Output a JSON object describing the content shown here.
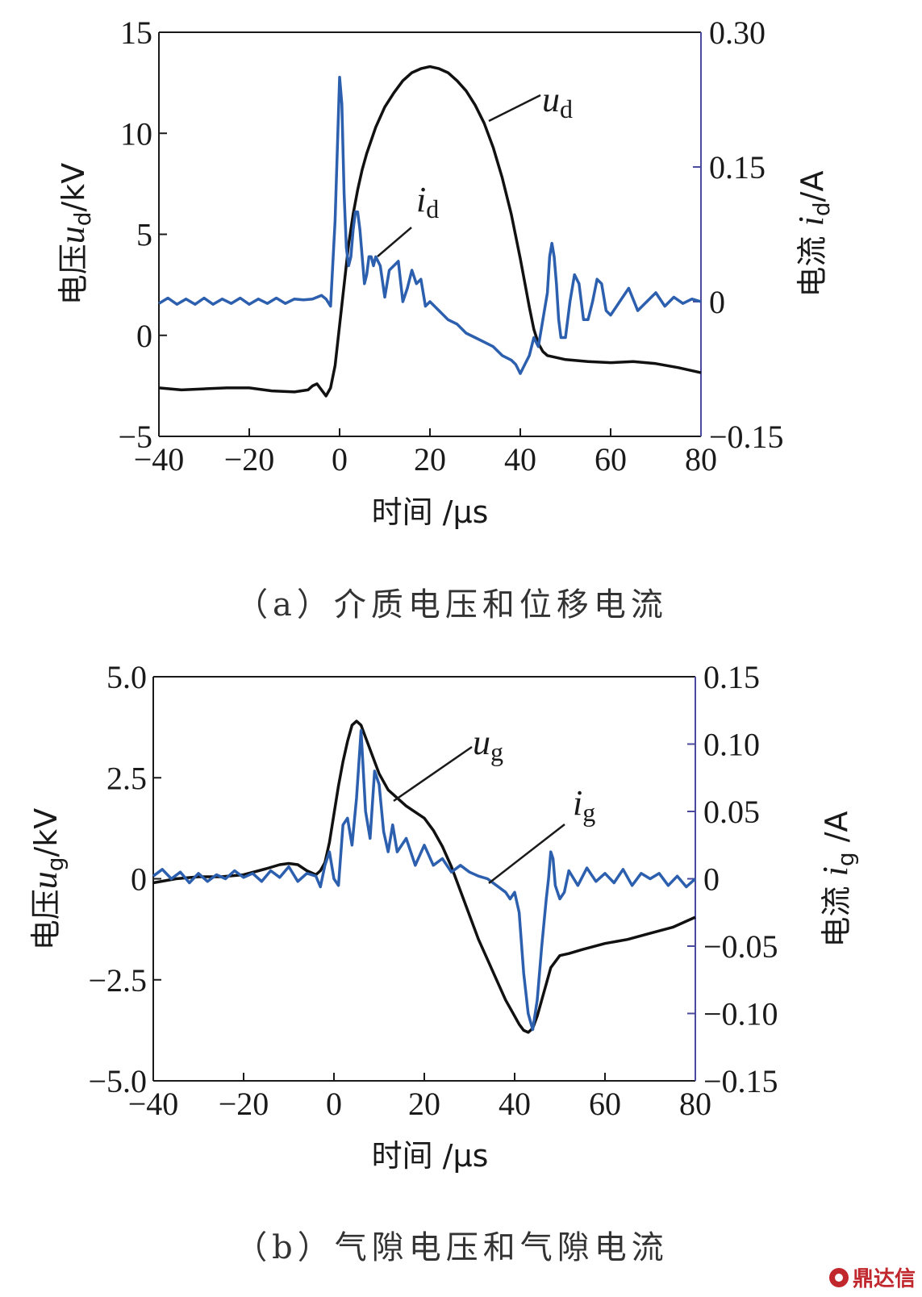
{
  "colors": {
    "voltage": "#111111",
    "current": "#2c5fad",
    "right_axis": "#4a4a9e"
  },
  "chart_data": [
    {
      "type": "line",
      "panel": "a",
      "caption": "（a）介质电压和位移电流",
      "xlabel": "时间 /μs",
      "ylabel_left": {
        "prefix": "电压",
        "var": "u",
        "sub": "d",
        "unit": "/kV"
      },
      "ylabel_right": {
        "prefix": "电流 ",
        "var": "i",
        "sub": "d",
        "unit": "/A"
      },
      "xlim": [
        -40,
        80
      ],
      "ylim_left": [
        -5,
        15
      ],
      "ylim_right": [
        -0.15,
        0.3
      ],
      "x_ticks": [
        "−40",
        "−20",
        "0",
        "20",
        "40",
        "60",
        "80"
      ],
      "y_left_ticks": [
        "−5",
        "0",
        "5",
        "10",
        "15"
      ],
      "y_right_ticks": [
        "−0.15",
        "0",
        "0.15",
        "0.30"
      ],
      "annotations": [
        {
          "var": "u",
          "sub": "d",
          "series": "u_d"
        },
        {
          "var": "i",
          "sub": "d",
          "series": "i_d"
        }
      ],
      "series": [
        {
          "name": "u_d",
          "axis": "left",
          "x": [
            -40,
            -35,
            -30,
            -25,
            -20,
            -15,
            -10,
            -7,
            -6,
            -5,
            -4,
            -3,
            -2,
            -1,
            0,
            1,
            2,
            3,
            4,
            5,
            6,
            8,
            10,
            12,
            14,
            16,
            18,
            20,
            22,
            24,
            26,
            28,
            30,
            32,
            34,
            36,
            38,
            40,
            41,
            42,
            43,
            44,
            45,
            46,
            48,
            50,
            55,
            60,
            65,
            70,
            75,
            80
          ],
          "y": [
            -2.6,
            -2.7,
            -2.65,
            -2.6,
            -2.6,
            -2.75,
            -2.8,
            -2.7,
            -2.5,
            -2.4,
            -2.7,
            -3.0,
            -2.6,
            -1.5,
            0.5,
            2.5,
            4.5,
            6.0,
            7.2,
            8.2,
            9.0,
            10.3,
            11.3,
            12.0,
            12.6,
            13.0,
            13.2,
            13.3,
            13.2,
            13.0,
            12.6,
            12.1,
            11.4,
            10.5,
            9.3,
            7.8,
            6.0,
            3.8,
            2.6,
            1.4,
            0.3,
            -0.4,
            -0.8,
            -1.0,
            -1.1,
            -1.2,
            -1.3,
            -1.35,
            -1.3,
            -1.4,
            -1.6,
            -1.85
          ]
        },
        {
          "name": "i_d",
          "axis": "right",
          "x": [
            -40,
            -38,
            -36,
            -34,
            -32,
            -30,
            -28,
            -26,
            -24,
            -22,
            -20,
            -18,
            -16,
            -14,
            -12,
            -10,
            -8,
            -6,
            -4,
            -3,
            -2,
            -1,
            0,
            0.5,
            1,
            1.5,
            2,
            2.5,
            3,
            3.5,
            4,
            4.5,
            5,
            5.5,
            6,
            6.5,
            7,
            7.5,
            8,
            9,
            10,
            11,
            12,
            13,
            14,
            15,
            16,
            17,
            18,
            19,
            20,
            22,
            24,
            26,
            28,
            30,
            32,
            34,
            36,
            38,
            39,
            40,
            41,
            42,
            43,
            44,
            45,
            46,
            46.5,
            47,
            47.5,
            48,
            48.5,
            49,
            50,
            51,
            52,
            53,
            54,
            55,
            56,
            57,
            58,
            59,
            60,
            62,
            64,
            66,
            68,
            70,
            72,
            74,
            76,
            78,
            80
          ],
          "y": [
            -0.002,
            0.004,
            -0.003,
            0.003,
            -0.003,
            0.004,
            -0.003,
            0.003,
            -0.002,
            0.004,
            -0.003,
            0.003,
            -0.002,
            0.004,
            -0.002,
            0.003,
            0.002,
            0.003,
            0.007,
            0.003,
            -0.005,
            0.09,
            0.25,
            0.22,
            0.12,
            0.06,
            0.04,
            0.05,
            0.08,
            0.1,
            0.1,
            0.08,
            0.05,
            0.02,
            0.03,
            0.05,
            0.05,
            0.04,
            0.05,
            0.04,
            0.005,
            0.035,
            0.04,
            0.045,
            0.0,
            0.015,
            0.035,
            0.02,
            0.025,
            -0.005,
            0.0,
            -0.01,
            -0.02,
            -0.025,
            -0.035,
            -0.04,
            -0.045,
            -0.05,
            -0.06,
            -0.065,
            -0.07,
            -0.08,
            -0.07,
            -0.06,
            -0.04,
            -0.05,
            -0.02,
            0.01,
            0.05,
            0.065,
            0.05,
            0.02,
            -0.02,
            -0.04,
            -0.04,
            0.0,
            0.03,
            0.02,
            -0.02,
            -0.02,
            0.0,
            0.025,
            0.02,
            -0.01,
            -0.015,
            0.0,
            0.015,
            -0.01,
            0.0,
            0.01,
            -0.005,
            0.005,
            -0.002,
            0.003,
            0.0
          ]
        }
      ]
    },
    {
      "type": "line",
      "panel": "b",
      "caption": "（b）气隙电压和气隙电流",
      "xlabel": "时间 /μs",
      "ylabel_left": {
        "prefix": "电压",
        "var": "u",
        "sub": "g",
        "unit": "/kV"
      },
      "ylabel_right": {
        "prefix": "电流 ",
        "var": "i",
        "sub": "g",
        "unit": " /A"
      },
      "xlim": [
        -40,
        80
      ],
      "ylim_left": [
        -5.0,
        5.0
      ],
      "ylim_right": [
        -0.15,
        0.15
      ],
      "x_ticks": [
        "−40",
        "−20",
        "0",
        "20",
        "40",
        "60",
        "80"
      ],
      "y_left_ticks": [
        "−5.0",
        "−2.5",
        "0",
        "2.5",
        "5.0"
      ],
      "y_right_ticks": [
        "−0.15",
        "−0.10",
        "−0.05",
        "0",
        "0.05",
        "0.10",
        "0.15"
      ],
      "annotations": [
        {
          "var": "u",
          "sub": "g",
          "series": "u_g"
        },
        {
          "var": "i",
          "sub": "g",
          "series": "i_g"
        }
      ],
      "series": [
        {
          "name": "u_g",
          "axis": "left",
          "x": [
            -40,
            -35,
            -30,
            -25,
            -20,
            -15,
            -12,
            -10,
            -8,
            -6,
            -4,
            -3,
            -2,
            -1,
            0,
            1,
            2,
            3,
            4,
            5,
            6,
            7,
            8,
            10,
            12,
            14,
            16,
            18,
            20,
            22,
            24,
            26,
            28,
            30,
            32,
            34,
            36,
            38,
            40,
            41,
            42,
            43,
            44,
            45,
            46,
            47,
            48,
            50,
            52,
            55,
            60,
            65,
            70,
            75,
            80
          ],
          "y": [
            -0.1,
            0.0,
            0.05,
            0.05,
            0.1,
            0.25,
            0.35,
            0.38,
            0.35,
            0.2,
            0.1,
            0.2,
            0.4,
            0.9,
            1.6,
            2.3,
            2.9,
            3.4,
            3.8,
            3.9,
            3.8,
            3.5,
            3.2,
            2.6,
            2.2,
            2.0,
            1.8,
            1.65,
            1.5,
            1.2,
            0.8,
            0.3,
            -0.3,
            -0.9,
            -1.5,
            -2.0,
            -2.5,
            -3.0,
            -3.4,
            -3.6,
            -3.75,
            -3.8,
            -3.7,
            -3.4,
            -3.0,
            -2.6,
            -2.2,
            -1.9,
            -1.85,
            -1.75,
            -1.6,
            -1.5,
            -1.35,
            -1.2,
            -0.95
          ]
        },
        {
          "name": "i_g",
          "axis": "right",
          "x": [
            -40,
            -38,
            -36,
            -34,
            -32,
            -30,
            -28,
            -26,
            -24,
            -22,
            -20,
            -18,
            -16,
            -14,
            -12,
            -10,
            -8,
            -6,
            -4,
            -3,
            -2,
            -1,
            0,
            1,
            2,
            3,
            4,
            5,
            6,
            7,
            8,
            9,
            10,
            11,
            12,
            13,
            14,
            16,
            18,
            20,
            22,
            24,
            26,
            28,
            30,
            32,
            34,
            36,
            38,
            39,
            40,
            41,
            42,
            43,
            44,
            45,
            46,
            47,
            47.5,
            48,
            48.5,
            49,
            50,
            51,
            52,
            54,
            56,
            58,
            60,
            62,
            64,
            66,
            68,
            70,
            72,
            74,
            76,
            78,
            80
          ],
          "y": [
            0.002,
            0.007,
            0.0,
            0.005,
            -0.003,
            0.004,
            -0.002,
            0.003,
            0.0,
            0.006,
            0.001,
            0.004,
            -0.002,
            0.006,
            0.001,
            0.009,
            -0.002,
            0.004,
            0.002,
            -0.006,
            0.01,
            0.02,
            0.0,
            -0.005,
            0.04,
            0.045,
            0.025,
            0.06,
            0.11,
            0.05,
            0.03,
            0.08,
            0.07,
            0.035,
            0.02,
            0.04,
            0.02,
            0.03,
            0.01,
            0.025,
            0.01,
            0.015,
            0.005,
            0.01,
            0.005,
            0.002,
            0.0,
            -0.005,
            -0.01,
            -0.015,
            -0.01,
            -0.025,
            -0.07,
            -0.1,
            -0.112,
            -0.09,
            -0.05,
            -0.015,
            0.0,
            0.02,
            0.015,
            -0.005,
            -0.015,
            -0.01,
            0.006,
            -0.005,
            0.008,
            -0.002,
            0.004,
            -0.003,
            0.007,
            -0.005,
            0.004,
            0.0,
            0.004,
            -0.005,
            0.002,
            -0.006,
            0.0
          ]
        }
      ]
    }
  ],
  "watermark": {
    "icon": "seal-icon",
    "text": "鼎达信"
  }
}
